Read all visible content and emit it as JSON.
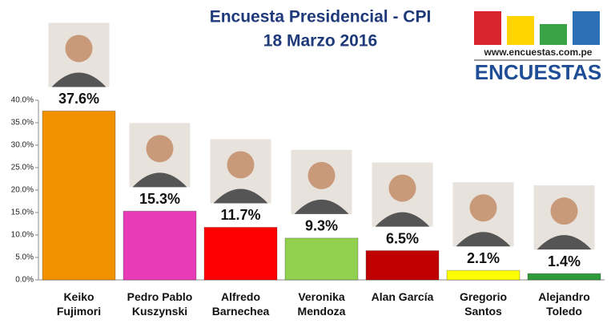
{
  "chart_data": {
    "type": "bar",
    "title": "Encuesta Presidencial - CPI",
    "subtitle": "18 Marzo 2016",
    "logo_url": "www.encuestas.com.pe",
    "logo_name": "ENCUESTAS",
    "categories": [
      "Keiko\nFujimori",
      "Pedro Pablo\nKuszynski",
      "Alfredo\nBarnechea",
      "Veronika\nMendoza",
      "Alan García",
      "Gregorio\nSantos",
      "Alejandro\nToledo"
    ],
    "values": [
      37.6,
      15.3,
      11.7,
      9.3,
      6.5,
      2.1,
      1.4
    ],
    "value_labels": [
      "37.6%",
      "15.3%",
      "11.7%",
      "9.3%",
      "6.5%",
      "2.1%",
      "1.4%"
    ],
    "colors": [
      "#f39200",
      "#e83bb7",
      "#ff0000",
      "#92d050",
      "#c00000",
      "#ffff00",
      "#2e9a3c"
    ],
    "ylim": [
      0,
      40
    ],
    "yticks": [
      {
        "value": 0,
        "label": "0.0%"
      },
      {
        "value": 5,
        "label": "5.0%"
      },
      {
        "value": 10,
        "label": "10.0%"
      },
      {
        "value": 15,
        "label": "15.0%"
      },
      {
        "value": 20,
        "label": "20.0%"
      },
      {
        "value": 25,
        "label": "25.0%"
      },
      {
        "value": 30,
        "label": "30.0%"
      },
      {
        "value": 35,
        "label": "35.0%"
      },
      {
        "value": 40,
        "label": "40.0%"
      }
    ],
    "grid": false
  }
}
